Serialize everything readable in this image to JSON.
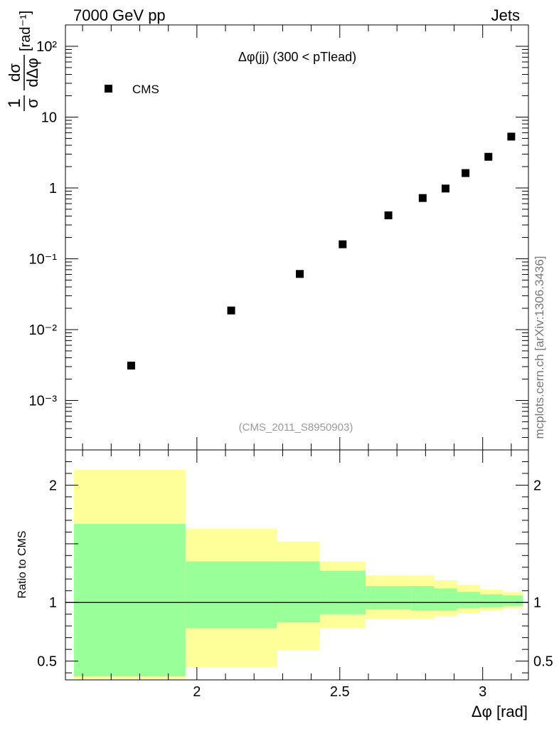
{
  "header": {
    "left_title": "7000 GeV pp",
    "right_title": "Jets",
    "side_label": "mcplots.cern.ch [arXiv:1306.3436]"
  },
  "chart_data": [
    {
      "type": "scatter",
      "title": "Δφ(jj) (300 < pTlead)",
      "watermark": "(CMS_2011_S8950903)",
      "ylabel": "1/σ dσ/dΔφ [rad⁻¹]",
      "yscale": "log",
      "ylim": [
        0.0002,
        200
      ],
      "xlim": [
        1.54,
        3.16
      ],
      "y_ticks": [
        {
          "value": 0.001,
          "label": "10⁻³"
        },
        {
          "value": 0.01,
          "label": "10⁻²"
        },
        {
          "value": 0.1,
          "label": "10⁻¹"
        },
        {
          "value": 1,
          "label": "1"
        },
        {
          "value": 10,
          "label": "10"
        },
        {
          "value": 100,
          "label": "10²"
        }
      ],
      "legend": {
        "position": "top-left",
        "entries": [
          "CMS"
        ]
      },
      "series": [
        {
          "name": "CMS",
          "marker": "square",
          "color": "#000000",
          "x": [
            1.77,
            2.12,
            2.36,
            2.51,
            2.67,
            2.79,
            2.87,
            2.94,
            3.02,
            3.1
          ],
          "y": [
            0.0031,
            0.0186,
            0.061,
            0.16,
            0.41,
            0.72,
            0.98,
            1.62,
            2.75,
            5.3
          ]
        }
      ]
    },
    {
      "type": "area",
      "ylabel": "Ratio to CMS",
      "ylim": [
        0.34,
        2.3
      ],
      "xlim": [
        1.54,
        3.16
      ],
      "xlabel": "Δφ [rad]",
      "x_ticks": [
        {
          "value": 2,
          "label": "2"
        },
        {
          "value": 2.5,
          "label": "2.5"
        },
        {
          "value": 3,
          "label": "3"
        }
      ],
      "y_ticks": [
        {
          "value": 0.5,
          "label": "0.5"
        },
        {
          "value": 1,
          "label": "1"
        },
        {
          "value": 2,
          "label": "2"
        }
      ],
      "reference_line": 1,
      "bin_edges": [
        1.57,
        1.96,
        2.28,
        2.43,
        2.59,
        2.75,
        2.83,
        2.91,
        2.99,
        3.07,
        3.14
      ],
      "bands": [
        {
          "name": "outer",
          "color": "#ffff99",
          "upper": [
            2.13,
            1.63,
            1.52,
            1.35,
            1.23,
            1.23,
            1.19,
            1.15,
            1.11,
            1.09
          ],
          "lower": [
            0.35,
            0.45,
            0.59,
            0.78,
            0.86,
            0.86,
            0.88,
            0.91,
            0.93,
            0.95
          ]
        },
        {
          "name": "inner",
          "color": "#99ff99",
          "upper": [
            1.67,
            1.35,
            1.35,
            1.27,
            1.14,
            1.14,
            1.12,
            1.09,
            1.07,
            1.06
          ],
          "lower": [
            0.37,
            0.78,
            0.83,
            0.9,
            0.94,
            0.93,
            0.93,
            0.95,
            0.96,
            0.97
          ]
        }
      ]
    }
  ]
}
